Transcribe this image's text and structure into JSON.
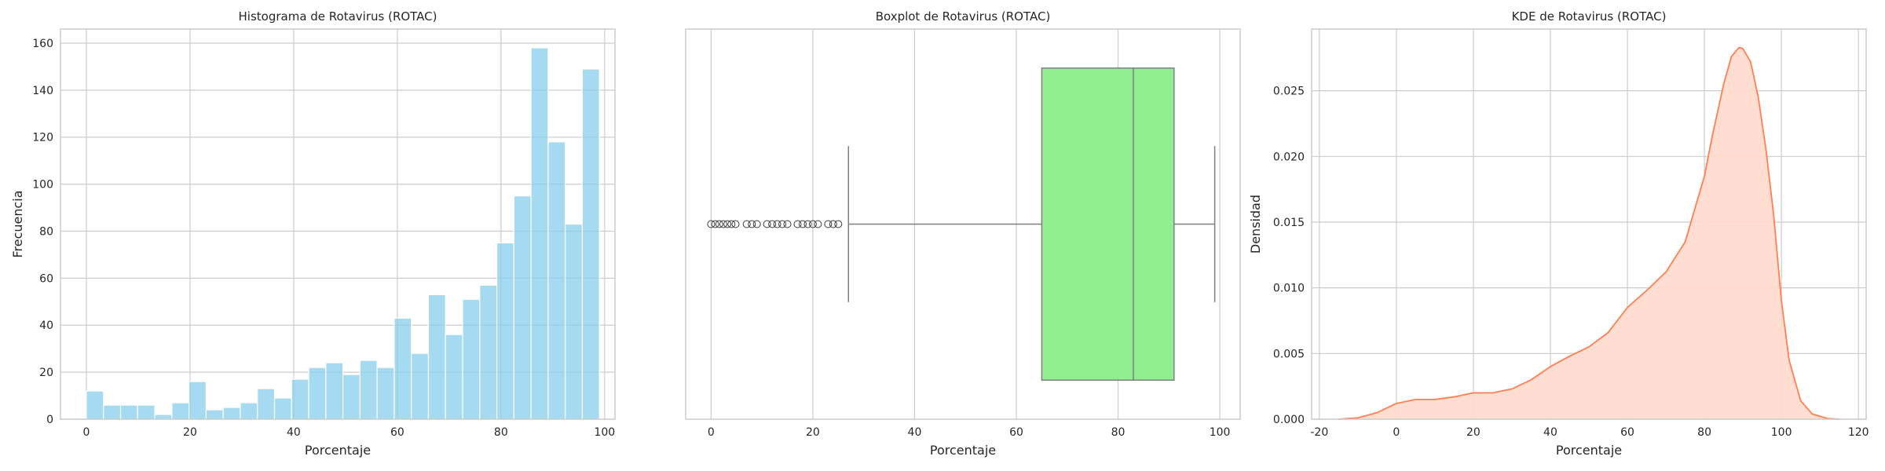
{
  "chart_data": [
    {
      "type": "bar",
      "title": "Histograma de Rotavirus (ROTAC)",
      "xlabel": "Porcentaje",
      "ylabel": "Frecuencia",
      "xlim": [
        -5,
        102
      ],
      "ylim": [
        0,
        166
      ],
      "xticks": [
        0,
        20,
        40,
        60,
        80,
        100
      ],
      "yticks": [
        0,
        20,
        40,
        60,
        80,
        100,
        120,
        140,
        160
      ],
      "bin_width": 3.3,
      "bin_start": 0,
      "values": [
        12,
        6,
        6,
        6,
        2,
        7,
        16,
        4,
        5,
        7,
        13,
        9,
        17,
        22,
        24,
        19,
        25,
        22,
        43,
        28,
        53,
        36,
        51,
        57,
        75,
        95,
        158,
        118,
        83,
        149
      ],
      "color": "#87ceeb",
      "grid": true
    },
    {
      "type": "box",
      "title": "Boxplot de Rotavirus (ROTAC)",
      "xlabel": "Porcentaje",
      "ylabel": "",
      "xlim": [
        -5,
        104
      ],
      "xticks": [
        0,
        20,
        40,
        60,
        80,
        100
      ],
      "whisker_low": 27,
      "q1": 65,
      "median": 83,
      "q3": 91,
      "whisker_high": 99,
      "outliers": [
        0,
        0.8,
        1.6,
        2.4,
        3.2,
        4.0,
        4.8,
        7,
        8,
        9,
        11,
        12,
        13,
        14,
        15,
        17,
        18,
        19,
        20,
        21,
        23,
        24,
        25
      ],
      "color": "#90ee90",
      "grid": true
    },
    {
      "type": "area",
      "title": "KDE de Rotavirus (ROTAC)",
      "xlabel": "Porcentaje",
      "ylabel": "Densidad",
      "xlim": [
        -22,
        122
      ],
      "ylim": [
        0,
        0.0297
      ],
      "xticks": [
        -20,
        0,
        20,
        40,
        60,
        80,
        100,
        120
      ],
      "yticks": [
        0.0,
        0.005,
        0.01,
        0.015,
        0.02,
        0.025
      ],
      "ytick_labels": [
        "0.000",
        "0.005",
        "0.010",
        "0.015",
        "0.020",
        "0.025"
      ],
      "x": [
        -15,
        -10,
        -5,
        0,
        5,
        10,
        15,
        20,
        25,
        30,
        35,
        40,
        45,
        50,
        55,
        60,
        65,
        70,
        75,
        80,
        82,
        85,
        87,
        89,
        90,
        92,
        94,
        96,
        98,
        100,
        102,
        105,
        108,
        112,
        115
      ],
      "y": [
        0.0,
        0.0001,
        0.0005,
        0.0012,
        0.0015,
        0.0015,
        0.0017,
        0.002,
        0.002,
        0.0023,
        0.003,
        0.004,
        0.0048,
        0.0055,
        0.0066,
        0.0085,
        0.0098,
        0.0112,
        0.0135,
        0.0185,
        0.0215,
        0.0255,
        0.0276,
        0.0283,
        0.0282,
        0.0272,
        0.0245,
        0.0205,
        0.0155,
        0.009,
        0.0045,
        0.0014,
        0.0004,
        5e-05,
        0.0
      ],
      "color": "#ff7f50",
      "fill": "#ffdacc",
      "grid": true
    }
  ]
}
